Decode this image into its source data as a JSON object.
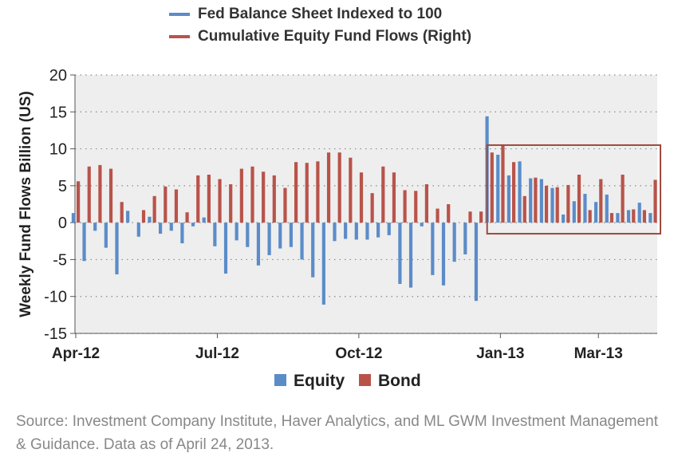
{
  "top_legend": [
    {
      "label": "Fed Balance Sheet Indexed to 100",
      "color": "#5B8CC8"
    },
    {
      "label": "Cumulative  Equity Fund Flows (Right)",
      "color": "#B9534A"
    }
  ],
  "source_note": "Source: Investment Company Institute, Haver Analytics, and ML GWM Investment Management & Guidance. Data as of April 24, 2013.",
  "chart_data": {
    "type": "bar",
    "ylabel": "Weekly Fund Flows Billion (US)",
    "ylim": [
      -15,
      20
    ],
    "yticks": [
      -15,
      -10,
      -5,
      0,
      5,
      10,
      15,
      20
    ],
    "grid": true,
    "legend_position": "bottom",
    "x_tick_labels": [
      "Apr-12",
      "Jul-12",
      "Oct-12",
      "Jan-13",
      "Mar-13"
    ],
    "x_tick_index": [
      0,
      13,
      26,
      39,
      48
    ],
    "colors": {
      "Equity": "#5B8CC8",
      "Bond": "#B9534A"
    },
    "series": [
      {
        "name": "Equity",
        "values": [
          1.3,
          -5.2,
          -1.1,
          -3.4,
          -7.0,
          1.6,
          -1.9,
          0.8,
          -1.5,
          -1.1,
          -2.8,
          -0.5,
          0.7,
          -3.2,
          -6.9,
          -2.4,
          -3.3,
          -5.8,
          -4.4,
          -3.5,
          -3.3,
          -5.0,
          -7.4,
          -11.1,
          -2.5,
          -2.2,
          -2.3,
          -2.3,
          -2.0,
          -1.7,
          -8.3,
          -8.8,
          -0.5,
          -7.1,
          -8.5,
          -5.3,
          -4.3,
          -10.6,
          14.4,
          9.2,
          6.4,
          8.3,
          6.0,
          5.9,
          4.7,
          1.1,
          2.9,
          3.9,
          2.8,
          3.8,
          1.3,
          1.7,
          2.7,
          1.3
        ]
      },
      {
        "name": "Bond",
        "values": [
          5.6,
          7.6,
          7.8,
          7.3,
          2.8,
          0.0,
          1.7,
          3.6,
          4.9,
          4.5,
          1.4,
          6.4,
          6.5,
          5.9,
          5.2,
          7.3,
          7.6,
          6.9,
          6.4,
          4.7,
          8.2,
          8.1,
          8.3,
          9.5,
          9.5,
          8.8,
          6.8,
          4.0,
          7.6,
          6.8,
          4.4,
          4.3,
          5.2,
          1.9,
          2.5,
          0.0,
          1.5,
          1.5,
          9.5,
          10.6,
          8.2,
          3.6,
          6.1,
          5.0,
          4.8,
          5.1,
          6.5,
          1.7,
          5.9,
          1.3,
          6.5,
          1.8,
          1.7,
          5.8
        ]
      }
    ],
    "legend": [
      {
        "label": "Equity",
        "color": "#5B8CC8"
      },
      {
        "label": "Bond",
        "color": "#B9534A"
      }
    ],
    "highlight_box": {
      "x_from_index": 38,
      "x_to_index": 54,
      "y_from": -1.5,
      "y_to": 10.5,
      "color": "#9E4A3C"
    }
  }
}
